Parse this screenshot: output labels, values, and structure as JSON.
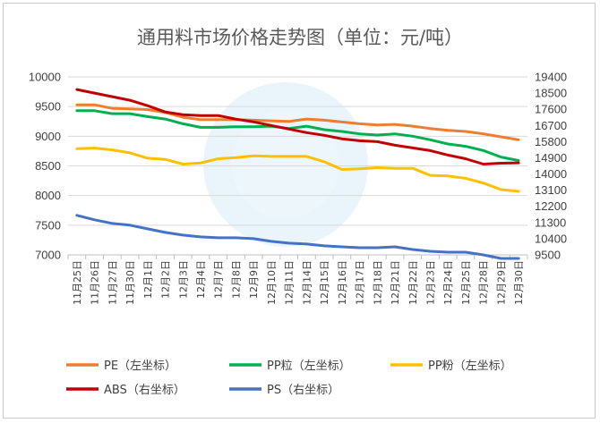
{
  "chart_data": {
    "type": "line",
    "title": "通用料市场价格走势图（单位：元/吨）",
    "categories": [
      "11月25日",
      "11月26日",
      "11月27日",
      "11月30日",
      "12月1日",
      "12月2日",
      "12月3日",
      "12月4日",
      "12月7日",
      "12月8日",
      "12月9日",
      "12月10日",
      "12月11日",
      "12月14日",
      "12月15日",
      "12月16日",
      "12月17日",
      "12月18日",
      "12月21日",
      "12月22日",
      "12月23日",
      "12月24日",
      "12月25日",
      "12月28日",
      "12月29日",
      "12月30日"
    ],
    "left_axis": {
      "ylim": [
        7000,
        10000
      ],
      "ticks": [
        "10000",
        "9500",
        "9000",
        "8500",
        "8000",
        "7500",
        "7000"
      ]
    },
    "right_axis": {
      "ylim": [
        9500,
        19400
      ],
      "ticks": [
        "19400",
        "18500",
        "17600",
        "16700",
        "15800",
        "14900",
        "14000",
        "13100",
        "12200",
        "11300",
        "10400",
        "9500"
      ]
    },
    "grid": true,
    "legend_position": "bottom",
    "series": [
      {
        "name": "PE",
        "label": "PE（左坐标）",
        "axis": "left",
        "color": "#ED7D31",
        "values": [
          9530,
          9530,
          9470,
          9460,
          9450,
          9400,
          9320,
          9280,
          9280,
          9280,
          9270,
          9260,
          9250,
          9290,
          9270,
          9240,
          9210,
          9190,
          9200,
          9170,
          9130,
          9100,
          9080,
          9040,
          8990,
          8940
        ]
      },
      {
        "name": "PP粒",
        "label": "PP粒（左坐标）",
        "axis": "left",
        "color": "#00B050",
        "values": [
          9430,
          9430,
          9380,
          9380,
          9330,
          9290,
          9210,
          9150,
          9150,
          9160,
          9160,
          9170,
          9130,
          9170,
          9110,
          9080,
          9040,
          9020,
          9040,
          9000,
          8940,
          8870,
          8830,
          8760,
          8650,
          8590
        ]
      },
      {
        "name": "PP粉",
        "label": "PP粉（左坐标）",
        "axis": "left",
        "color": "#FFC000",
        "values": [
          8790,
          8800,
          8770,
          8720,
          8630,
          8610,
          8530,
          8550,
          8620,
          8640,
          8670,
          8660,
          8660,
          8660,
          8570,
          8440,
          8450,
          8470,
          8460,
          8460,
          8340,
          8330,
          8290,
          8210,
          8100,
          8070
        ]
      },
      {
        "name": "ABS",
        "label": "ABS（右坐标）",
        "axis": "right",
        "color": "#C00000",
        "values": [
          18700,
          18500,
          18300,
          18100,
          17800,
          17450,
          17300,
          17250,
          17250,
          17050,
          16900,
          16700,
          16500,
          16300,
          16150,
          15950,
          15850,
          15800,
          15600,
          15450,
          15300,
          15050,
          14850,
          14550,
          14600,
          14620
        ]
      },
      {
        "name": "PS",
        "label": "PS（右坐标）",
        "axis": "right",
        "color": "#4472C4",
        "values": [
          11700,
          11450,
          11250,
          11150,
          10950,
          10750,
          10600,
          10500,
          10450,
          10450,
          10400,
          10250,
          10150,
          10100,
          10000,
          9950,
          9900,
          9900,
          9950,
          9800,
          9700,
          9650,
          9650,
          9500,
          9300,
          9300
        ]
      }
    ]
  }
}
